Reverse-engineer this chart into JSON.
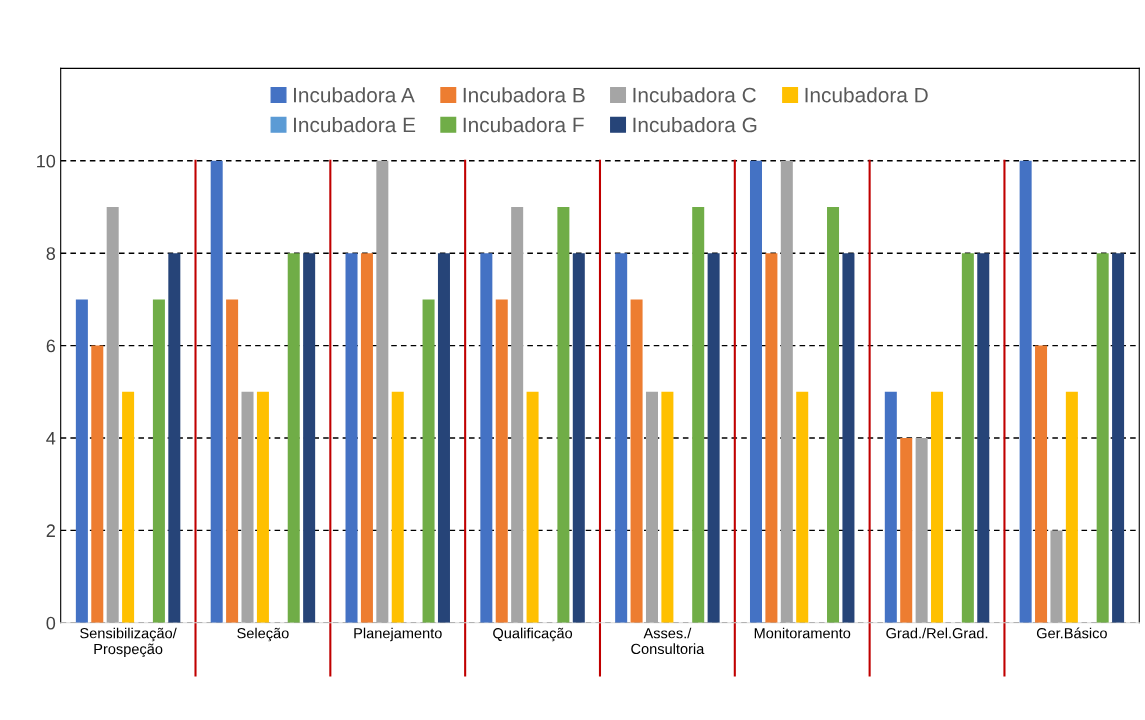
{
  "chart_data": {
    "type": "bar",
    "categories": [
      "Sensibilização/\nProspeção",
      "Seleção",
      "Planejamento",
      "Qualificação",
      "Asses./\nConsultoria",
      "Monitoramento",
      "Grad./Rel.Grad.",
      "Ger.Básico"
    ],
    "series": [
      {
        "name": "Incubadora A",
        "color": "#4472c4",
        "values": [
          7,
          10,
          8,
          8,
          8,
          10,
          5,
          10
        ]
      },
      {
        "name": "Incubadora B",
        "color": "#ed7d31",
        "values": [
          6,
          7,
          8,
          7,
          7,
          8,
          4,
          6
        ]
      },
      {
        "name": "Incubadora C",
        "color": "#a5a5a5",
        "values": [
          9,
          5,
          10,
          9,
          5,
          10,
          4,
          2
        ]
      },
      {
        "name": "Incubadora D",
        "color": "#ffc000",
        "values": [
          5,
          5,
          5,
          5,
          5,
          5,
          5,
          5
        ]
      },
      {
        "name": "Incubadora E",
        "color": "#5b9bd5",
        "values": [
          0,
          0,
          0,
          0,
          0,
          0,
          0,
          0
        ]
      },
      {
        "name": "Incubadora F",
        "color": "#70ad47",
        "values": [
          7,
          8,
          7,
          9,
          9,
          9,
          8,
          8
        ]
      },
      {
        "name": "Incubadora G",
        "color": "#264478",
        "values": [
          8,
          8,
          8,
          8,
          8,
          8,
          8,
          8
        ]
      }
    ],
    "ylim": [
      0,
      12
    ],
    "yticks": [
      0,
      2,
      4,
      6,
      8,
      10
    ],
    "grid": "y",
    "legend": "top"
  }
}
